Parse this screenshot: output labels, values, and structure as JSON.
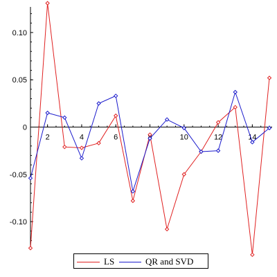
{
  "chart_data": {
    "type": "line",
    "title": "",
    "xlabel": "",
    "ylabel": "",
    "xlim": [
      1,
      15
    ],
    "ylim": [
      -0.13,
      0.13
    ],
    "x_ticks": [
      2,
      4,
      6,
      8,
      10,
      12,
      14
    ],
    "y_ticks": [
      0.1,
      0.05,
      0,
      -0.05,
      -0.1
    ],
    "y_tick_labels": [
      "0.10",
      "0.05",
      "0",
      "-0.05",
      "-0.10"
    ],
    "x": [
      1,
      2,
      3,
      4,
      5,
      6,
      7,
      8,
      9,
      10,
      11,
      12,
      13,
      14,
      15
    ],
    "series": [
      {
        "name": "LS",
        "color": "#e02020",
        "values": [
          -0.128,
          0.131,
          -0.021,
          -0.022,
          -0.017,
          0.012,
          -0.078,
          -0.008,
          -0.108,
          -0.05,
          -0.026,
          0.005,
          0.021,
          -0.135,
          0.052
        ]
      },
      {
        "name": "QR and SVD",
        "color": "#1a1acc",
        "values": [
          -0.054,
          0.015,
          0.01,
          -0.033,
          0.025,
          0.033,
          -0.068,
          -0.012,
          0.008,
          -0.001,
          -0.026,
          -0.025,
          0.037,
          -0.016,
          -0.001
        ]
      }
    ],
    "grid": false,
    "legend_position": "bottom-center"
  }
}
